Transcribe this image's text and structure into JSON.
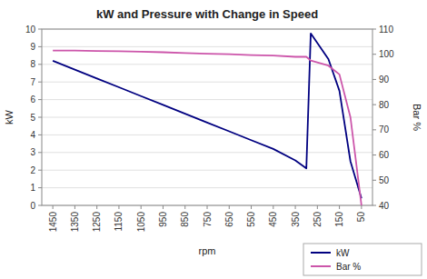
{
  "chart_data": {
    "type": "line",
    "title": "kW and Pressure with Change in Speed",
    "x_label": "rpm",
    "y_label": "kW",
    "y2_label": "Bar %",
    "x": [
      1450,
      1350,
      1250,
      1150,
      1050,
      950,
      850,
      750,
      650,
      550,
      450,
      350,
      300,
      280,
      200,
      150,
      100,
      50
    ],
    "series": [
      {
        "name": "kW",
        "color": "#000080",
        "values": [
          8.2,
          7.7,
          7.2,
          6.7,
          6.2,
          5.7,
          5.2,
          4.7,
          4.2,
          3.7,
          3.2,
          2.55,
          2.1,
          9.75,
          8.3,
          6.5,
          2.5,
          0.4
        ]
      },
      {
        "name": "Bar %",
        "color": "#CC55AA",
        "axis": "y2",
        "values": [
          101.5,
          101.5,
          101.3,
          101.2,
          101.0,
          100.8,
          100.5,
          100.2,
          100.0,
          99.7,
          99.5,
          99.0,
          99.0,
          97.5,
          95.5,
          92.0,
          75.0,
          40.0
        ]
      }
    ],
    "xlim": [
      1500,
      0
    ],
    "xticks": [
      1450,
      1350,
      1250,
      1150,
      1050,
      950,
      850,
      750,
      650,
      550,
      450,
      350,
      250,
      150,
      50
    ],
    "ylim": [
      0,
      10
    ],
    "yticks": [
      0,
      1,
      2,
      3,
      4,
      5,
      6,
      7,
      8,
      9,
      10
    ],
    "y2lim": [
      40,
      110
    ],
    "y2ticks": [
      40,
      50,
      60,
      70,
      80,
      90,
      100,
      110
    ],
    "grid": true,
    "legend": "lower right"
  }
}
